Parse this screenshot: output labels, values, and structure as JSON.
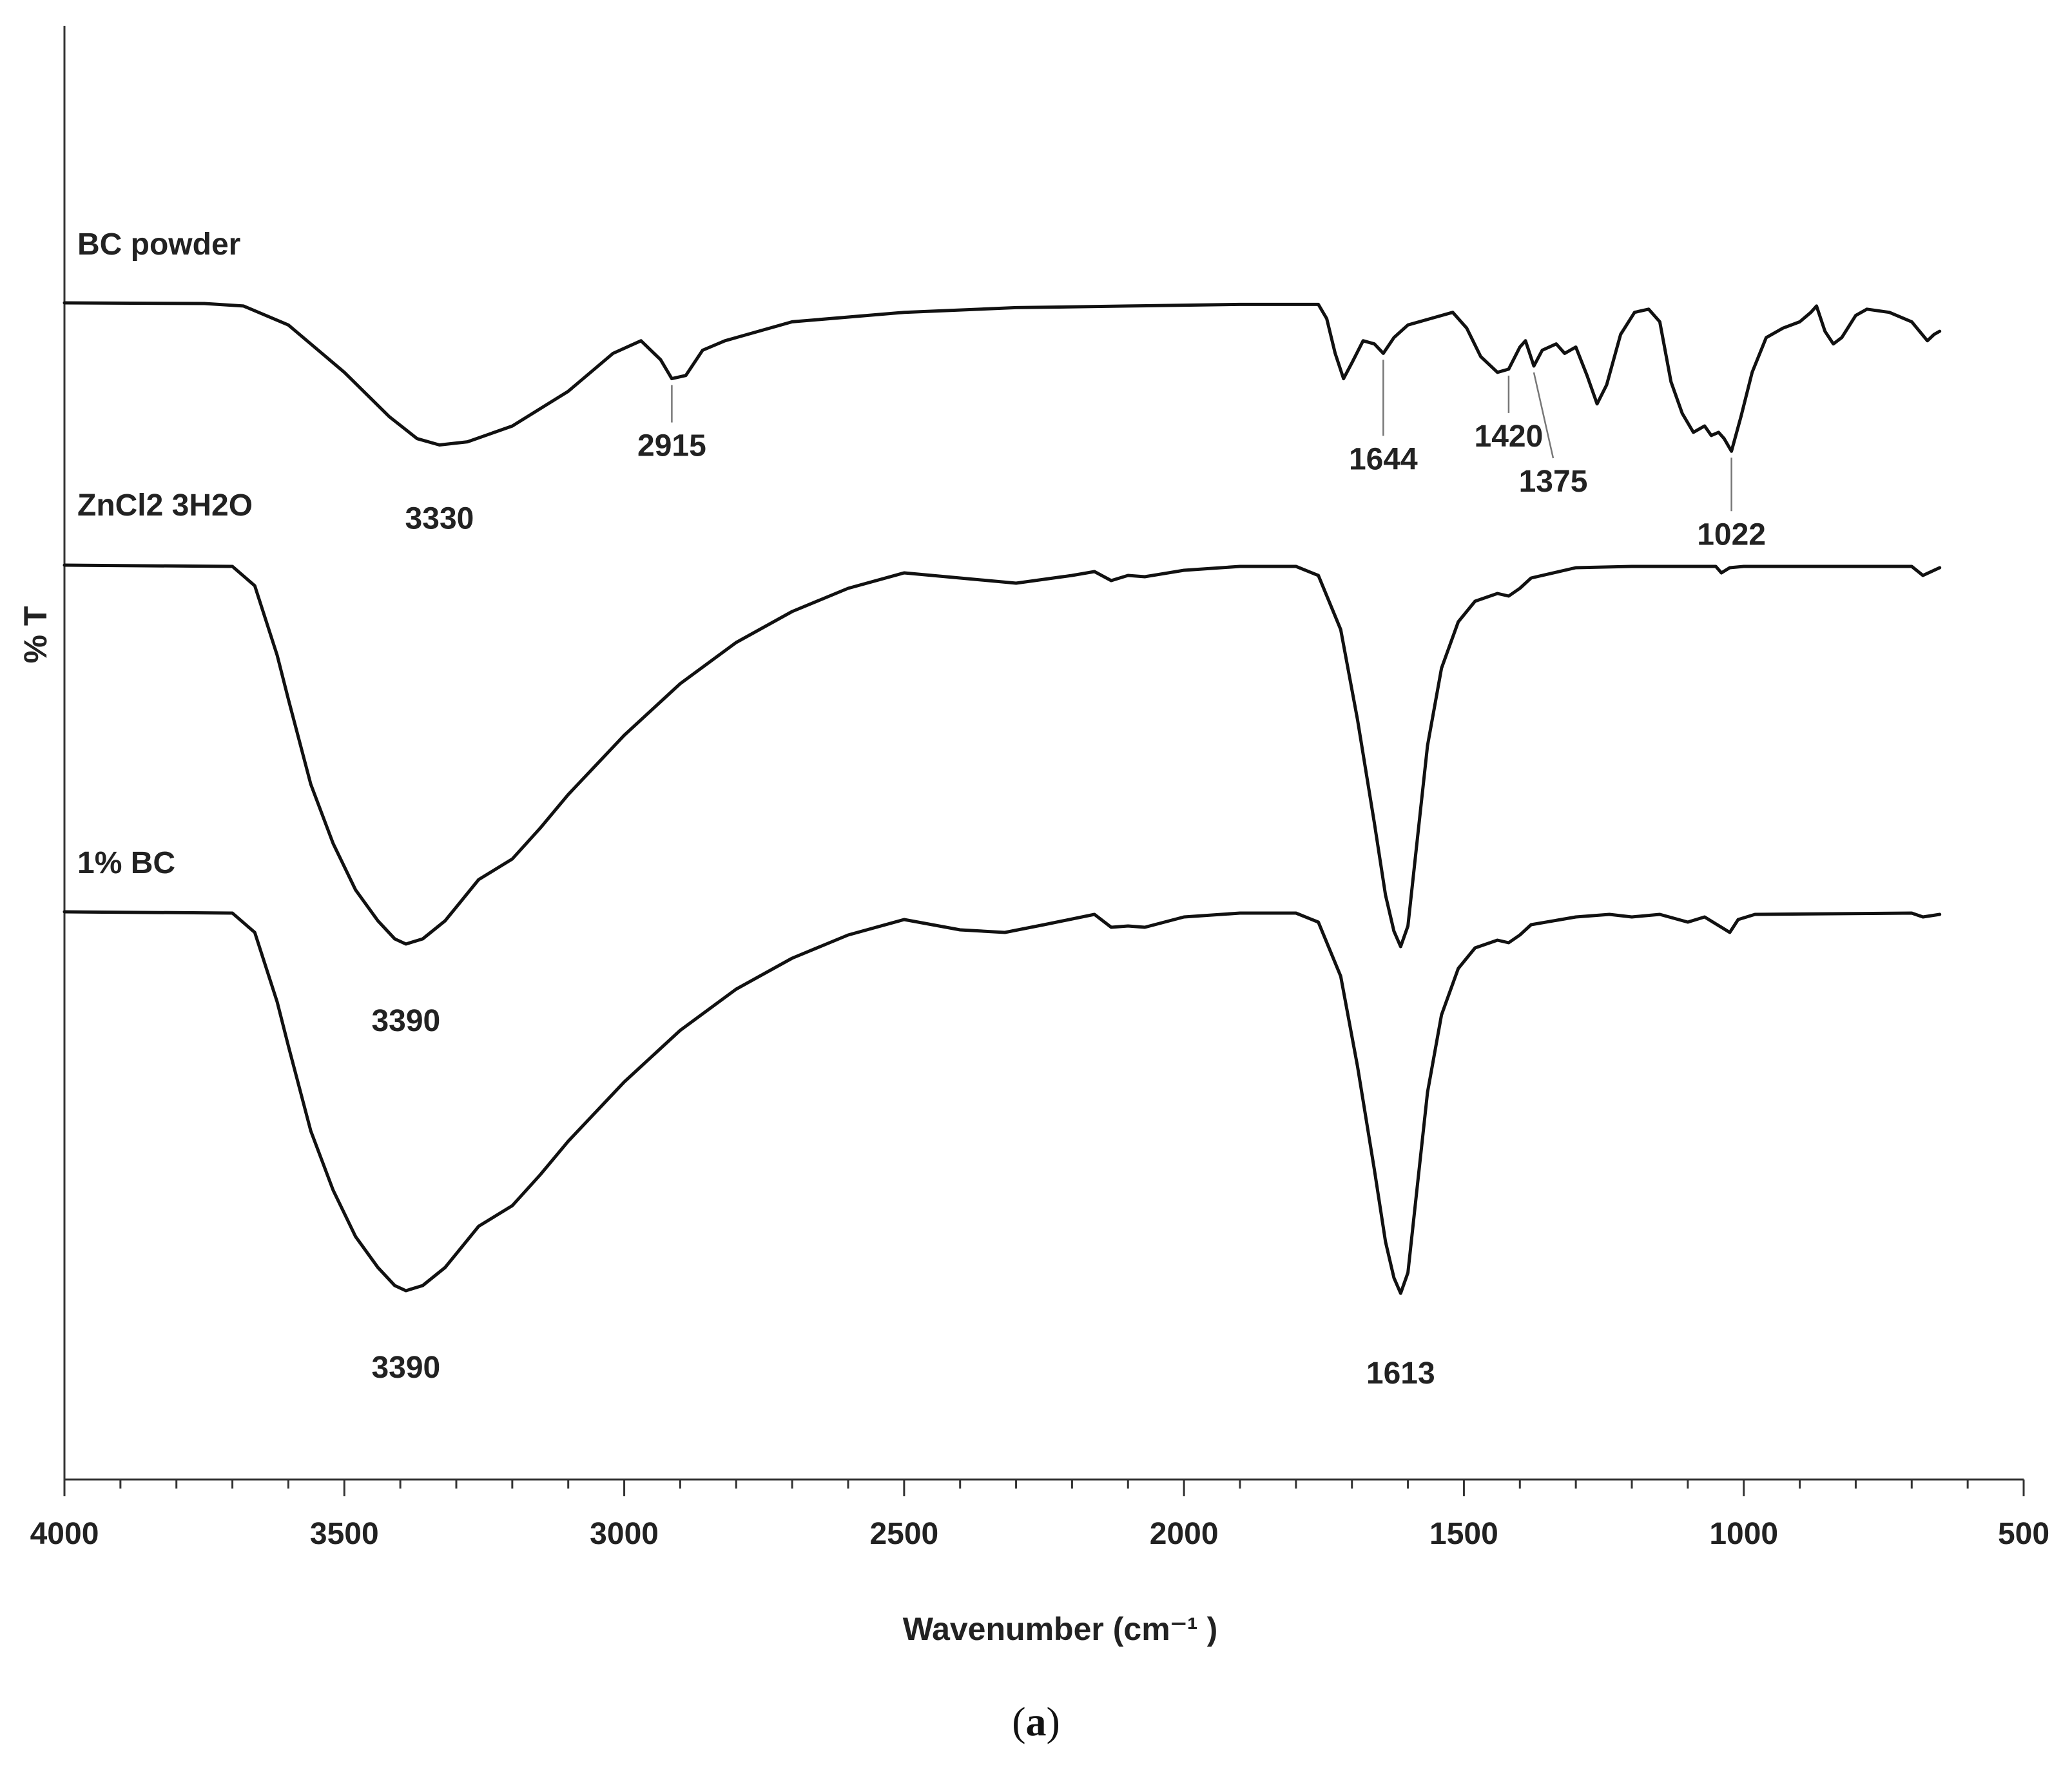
{
  "caption": {
    "open": "(",
    "letter": "a",
    "close": ")"
  },
  "chart_data": {
    "type": "line",
    "xlabel": "Wavenumber (cm⁻¹ )",
    "ylabel": "% T",
    "xlim": [
      4000,
      500
    ],
    "x_reversed": true,
    "x_ticks": [
      "4000",
      "3500",
      "3000",
      "2500",
      "2000",
      "1500",
      "1000",
      "500"
    ],
    "grid": false,
    "series": [
      {
        "name": "BC powder",
        "points": [
          [
            4000,
            0.0
          ],
          [
            3750,
            -0.02
          ],
          [
            3680,
            -0.1
          ],
          [
            3600,
            -0.7
          ],
          [
            3500,
            -2.2
          ],
          [
            3420,
            -3.6
          ],
          [
            3370,
            -4.3
          ],
          [
            3330,
            -4.5
          ],
          [
            3280,
            -4.4
          ],
          [
            3200,
            -3.9
          ],
          [
            3100,
            -2.8
          ],
          [
            3020,
            -1.6
          ],
          [
            2970,
            -1.2
          ],
          [
            2935,
            -1.8
          ],
          [
            2915,
            -2.4
          ],
          [
            2890,
            -2.3
          ],
          [
            2860,
            -1.5
          ],
          [
            2820,
            -1.2
          ],
          [
            2700,
            -0.6
          ],
          [
            2500,
            -0.3
          ],
          [
            2300,
            -0.15
          ],
          [
            2100,
            -0.1
          ],
          [
            1900,
            -0.05
          ],
          [
            1760,
            -0.05
          ],
          [
            1745,
            -0.5
          ],
          [
            1730,
            -1.6
          ],
          [
            1715,
            -2.4
          ],
          [
            1700,
            -1.9
          ],
          [
            1680,
            -1.2
          ],
          [
            1660,
            -1.3
          ],
          [
            1644,
            -1.6
          ],
          [
            1625,
            -1.1
          ],
          [
            1600,
            -0.7
          ],
          [
            1560,
            -0.5
          ],
          [
            1520,
            -0.3
          ],
          [
            1495,
            -0.8
          ],
          [
            1470,
            -1.7
          ],
          [
            1440,
            -2.2
          ],
          [
            1420,
            -2.1
          ],
          [
            1400,
            -1.4
          ],
          [
            1390,
            -1.2
          ],
          [
            1375,
            -2.0
          ],
          [
            1360,
            -1.5
          ],
          [
            1335,
            -1.3
          ],
          [
            1320,
            -1.6
          ],
          [
            1300,
            -1.4
          ],
          [
            1280,
            -2.3
          ],
          [
            1262,
            -3.2
          ],
          [
            1245,
            -2.6
          ],
          [
            1220,
            -1.0
          ],
          [
            1195,
            -0.3
          ],
          [
            1170,
            -0.2
          ],
          [
            1150,
            -0.6
          ],
          [
            1130,
            -2.5
          ],
          [
            1110,
            -3.5
          ],
          [
            1090,
            -4.1
          ],
          [
            1070,
            -3.9
          ],
          [
            1058,
            -4.2
          ],
          [
            1045,
            -4.1
          ],
          [
            1035,
            -4.3
          ],
          [
            1022,
            -4.7
          ],
          [
            1005,
            -3.6
          ],
          [
            985,
            -2.2
          ],
          [
            960,
            -1.1
          ],
          [
            930,
            -0.8
          ],
          [
            900,
            -0.6
          ],
          [
            880,
            -0.3
          ],
          [
            870,
            -0.1
          ],
          [
            855,
            -0.9
          ],
          [
            840,
            -1.3
          ],
          [
            825,
            -1.1
          ],
          [
            800,
            -0.4
          ],
          [
            780,
            -0.2
          ],
          [
            740,
            -0.3
          ],
          [
            700,
            -0.6
          ],
          [
            672,
            -1.2
          ],
          [
            660,
            -1.0
          ],
          [
            650,
            -0.9
          ]
        ]
      },
      {
        "name": "ZnCl2 3H2O",
        "points": [
          [
            4000,
            0.0
          ],
          [
            3700,
            -0.05
          ],
          [
            3660,
            -0.8
          ],
          [
            3620,
            -3.5
          ],
          [
            3600,
            -5.2
          ],
          [
            3560,
            -8.5
          ],
          [
            3520,
            -10.8
          ],
          [
            3480,
            -12.6
          ],
          [
            3440,
            -13.8
          ],
          [
            3410,
            -14.5
          ],
          [
            3390,
            -14.7
          ],
          [
            3360,
            -14.5
          ],
          [
            3320,
            -13.8
          ],
          [
            3290,
            -13.0
          ],
          [
            3260,
            -12.2
          ],
          [
            3230,
            -11.8
          ],
          [
            3200,
            -11.4
          ],
          [
            3150,
            -10.2
          ],
          [
            3100,
            -8.9
          ],
          [
            3000,
            -6.6
          ],
          [
            2900,
            -4.6
          ],
          [
            2800,
            -3.0
          ],
          [
            2700,
            -1.8
          ],
          [
            2600,
            -0.9
          ],
          [
            2500,
            -0.3
          ],
          [
            2400,
            -0.5
          ],
          [
            2300,
            -0.7
          ],
          [
            2200,
            -0.4
          ],
          [
            2160,
            -0.25
          ],
          [
            2130,
            -0.6
          ],
          [
            2100,
            -0.4
          ],
          [
            2070,
            -0.45
          ],
          [
            2000,
            -0.2
          ],
          [
            1900,
            -0.05
          ],
          [
            1800,
            -0.05
          ],
          [
            1760,
            -0.4
          ],
          [
            1720,
            -2.5
          ],
          [
            1690,
            -6.0
          ],
          [
            1660,
            -10.0
          ],
          [
            1640,
            -12.8
          ],
          [
            1625,
            -14.2
          ],
          [
            1613,
            -14.8
          ],
          [
            1600,
            -14.0
          ],
          [
            1585,
            -11.0
          ],
          [
            1565,
            -7.0
          ],
          [
            1540,
            -4.0
          ],
          [
            1510,
            -2.2
          ],
          [
            1480,
            -1.4
          ],
          [
            1440,
            -1.1
          ],
          [
            1420,
            -1.2
          ],
          [
            1400,
            -0.9
          ],
          [
            1380,
            -0.5
          ],
          [
            1300,
            -0.1
          ],
          [
            1200,
            -0.05
          ],
          [
            1050,
            -0.05
          ],
          [
            1040,
            -0.3
          ],
          [
            1025,
            -0.1
          ],
          [
            1000,
            -0.05
          ],
          [
            700,
            -0.05
          ],
          [
            680,
            -0.4
          ],
          [
            660,
            -0.2
          ],
          [
            650,
            -0.1
          ]
        ]
      },
      {
        "name": "1% BC",
        "points": [
          [
            4000,
            0.0
          ],
          [
            3700,
            -0.05
          ],
          [
            3660,
            -0.8
          ],
          [
            3620,
            -3.5
          ],
          [
            3600,
            -5.2
          ],
          [
            3560,
            -8.5
          ],
          [
            3520,
            -10.8
          ],
          [
            3480,
            -12.6
          ],
          [
            3440,
            -13.8
          ],
          [
            3410,
            -14.5
          ],
          [
            3390,
            -14.7
          ],
          [
            3360,
            -14.5
          ],
          [
            3320,
            -13.8
          ],
          [
            3290,
            -13.0
          ],
          [
            3260,
            -12.2
          ],
          [
            3230,
            -11.8
          ],
          [
            3200,
            -11.4
          ],
          [
            3150,
            -10.2
          ],
          [
            3100,
            -8.9
          ],
          [
            3000,
            -6.6
          ],
          [
            2900,
            -4.6
          ],
          [
            2800,
            -3.0
          ],
          [
            2700,
            -1.8
          ],
          [
            2600,
            -0.9
          ],
          [
            2500,
            -0.3
          ],
          [
            2400,
            -0.7
          ],
          [
            2320,
            -0.8
          ],
          [
            2250,
            -0.5
          ],
          [
            2160,
            -0.1
          ],
          [
            2130,
            -0.6
          ],
          [
            2100,
            -0.55
          ],
          [
            2070,
            -0.6
          ],
          [
            2000,
            -0.2
          ],
          [
            1900,
            -0.05
          ],
          [
            1800,
            -0.05
          ],
          [
            1760,
            -0.4
          ],
          [
            1720,
            -2.5
          ],
          [
            1690,
            -6.0
          ],
          [
            1660,
            -10.0
          ],
          [
            1640,
            -12.8
          ],
          [
            1625,
            -14.2
          ],
          [
            1613,
            -14.8
          ],
          [
            1600,
            -14.0
          ],
          [
            1585,
            -11.0
          ],
          [
            1565,
            -7.0
          ],
          [
            1540,
            -4.0
          ],
          [
            1510,
            -2.2
          ],
          [
            1480,
            -1.4
          ],
          [
            1440,
            -1.1
          ],
          [
            1420,
            -1.2
          ],
          [
            1400,
            -0.9
          ],
          [
            1380,
            -0.5
          ],
          [
            1300,
            -0.2
          ],
          [
            1240,
            -0.1
          ],
          [
            1200,
            -0.2
          ],
          [
            1150,
            -0.1
          ],
          [
            1100,
            -0.4
          ],
          [
            1070,
            -0.2
          ],
          [
            1040,
            -0.6
          ],
          [
            1025,
            -0.8
          ],
          [
            1010,
            -0.3
          ],
          [
            980,
            -0.1
          ],
          [
            700,
            -0.05
          ],
          [
            680,
            -0.2
          ],
          [
            650,
            -0.1
          ]
        ]
      }
    ],
    "annotations": [
      {
        "series": 0,
        "x": 3330,
        "label": "3330",
        "leader": false
      },
      {
        "series": 0,
        "x": 2915,
        "label": "2915",
        "leader": true
      },
      {
        "series": 0,
        "x": 1644,
        "label": "1644",
        "leader": true
      },
      {
        "series": 0,
        "x": 1420,
        "label": "1420",
        "leader": true
      },
      {
        "series": 0,
        "x": 1375,
        "label": "1375",
        "leader": true
      },
      {
        "series": 0,
        "x": 1022,
        "label": "1022",
        "leader": true
      },
      {
        "series": 1,
        "x": 3390,
        "label": "3390",
        "leader": false
      },
      {
        "series": 2,
        "x": 3390,
        "label": "3390",
        "leader": false
      },
      {
        "series": 2,
        "x": 1613,
        "label": "1613",
        "leader": false
      }
    ]
  }
}
